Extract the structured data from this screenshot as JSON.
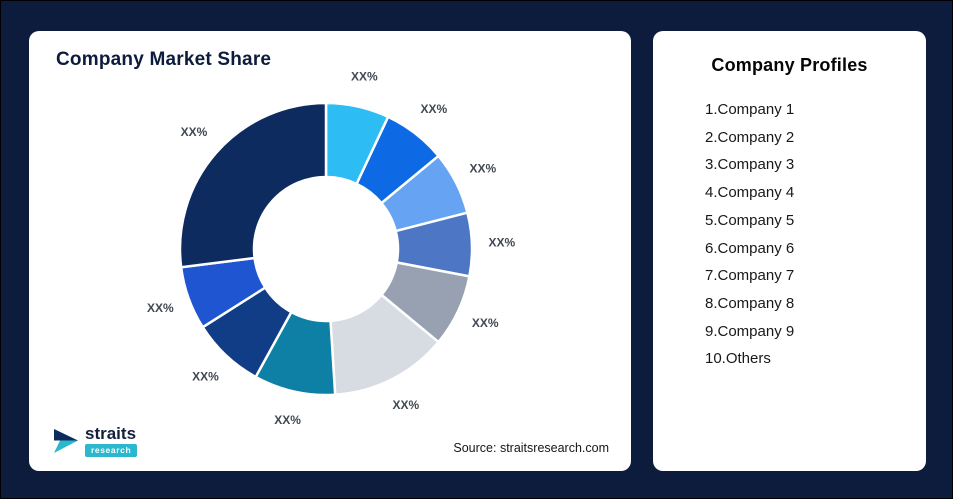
{
  "frame": {
    "background": "#0d1c3d"
  },
  "left_card": {
    "title": "Company Market Share",
    "source": "Source: straitsresearch.com",
    "logo": {
      "brand": "straits",
      "sub": "research",
      "accent": "#2bb8cf",
      "navy": "#0d2b5e"
    }
  },
  "right_card": {
    "title": "Company Profiles",
    "items": [
      "1.Company 1",
      "2.Company 2",
      "3.Company 3",
      "4.Company 4",
      "5.Company 5",
      "6.Company 6",
      "7.Company 7",
      "8.Company 8",
      "9.Company 9",
      "10.Others"
    ]
  },
  "chart_data": {
    "type": "pie",
    "donut": true,
    "title": "Company Market Share",
    "legend": "none",
    "inner_radius_ratio": 0.49,
    "start_angle_deg": 0,
    "segments": [
      {
        "label": "XX%",
        "value": 7,
        "color": "#2ebcf4"
      },
      {
        "label": "XX%",
        "value": 7,
        "color": "#0d6ae4"
      },
      {
        "label": "XX%",
        "value": 7,
        "color": "#66a3f2"
      },
      {
        "label": "XX%",
        "value": 7,
        "color": "#4d77c4"
      },
      {
        "label": "XX%",
        "value": 8,
        "color": "#97a1b1"
      },
      {
        "label": "XX%",
        "value": 13,
        "color": "#d7dce2"
      },
      {
        "label": "XX%",
        "value": 9,
        "color": "#0e80a6"
      },
      {
        "label": "XX%",
        "value": 8,
        "color": "#113c86"
      },
      {
        "label": "XX%",
        "value": 7,
        "color": "#1f55d0"
      },
      {
        "label": "XX%",
        "value": 27,
        "color": "#0d2b5e"
      }
    ]
  }
}
